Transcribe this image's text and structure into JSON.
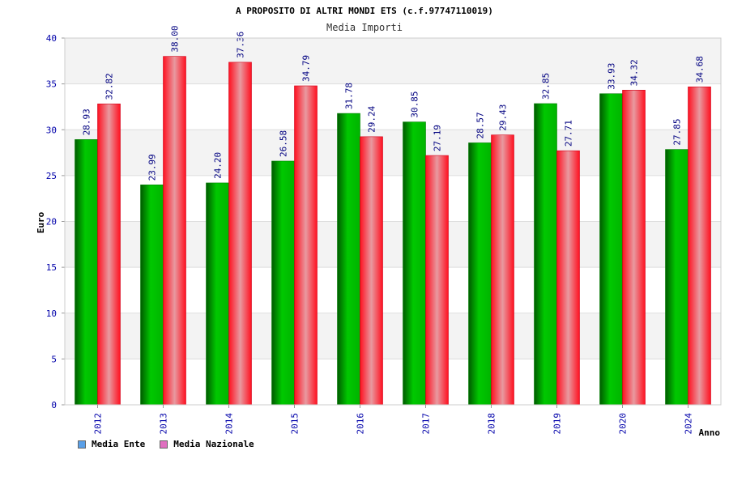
{
  "chart_data": {
    "type": "bar",
    "title": "A PROPOSITO DI ALTRI MONDI ETS (c.f.97747110019)",
    "subtitle": "Media Importi",
    "xlabel": "Anno",
    "ylabel": "Euro",
    "ylim": [
      0,
      40
    ],
    "yticks": [
      0,
      5,
      10,
      15,
      20,
      25,
      30,
      35,
      40
    ],
    "grid": true,
    "legend_position": "bottom-left",
    "categories": [
      "2012",
      "2013",
      "2014",
      "2015",
      "2016",
      "2017",
      "2018",
      "2019",
      "2020",
      "2024"
    ],
    "series": [
      {
        "name": "Media Ente",
        "color": "#00b000",
        "legend_color": "#5aa0e8",
        "values": [
          28.93,
          23.99,
          24.2,
          26.58,
          31.78,
          30.85,
          28.57,
          32.85,
          33.93,
          27.85
        ],
        "labels": [
          "28.93",
          "23.99",
          "24.20",
          "26.58",
          "31.78",
          "30.85",
          "28.57",
          "32.85",
          "33.93",
          "27.85"
        ]
      },
      {
        "name": "Media Nazionale",
        "color": "#ff1a2e",
        "legend_color": "#e070c0",
        "values": [
          32.82,
          38.0,
          37.36,
          34.79,
          29.24,
          27.19,
          29.43,
          27.71,
          34.32,
          34.68
        ],
        "labels": [
          "32.82",
          "38.00",
          "37.36",
          "34.79",
          "29.24",
          "27.19",
          "29.43",
          "27.71",
          "34.32",
          "34.68"
        ]
      }
    ]
  }
}
